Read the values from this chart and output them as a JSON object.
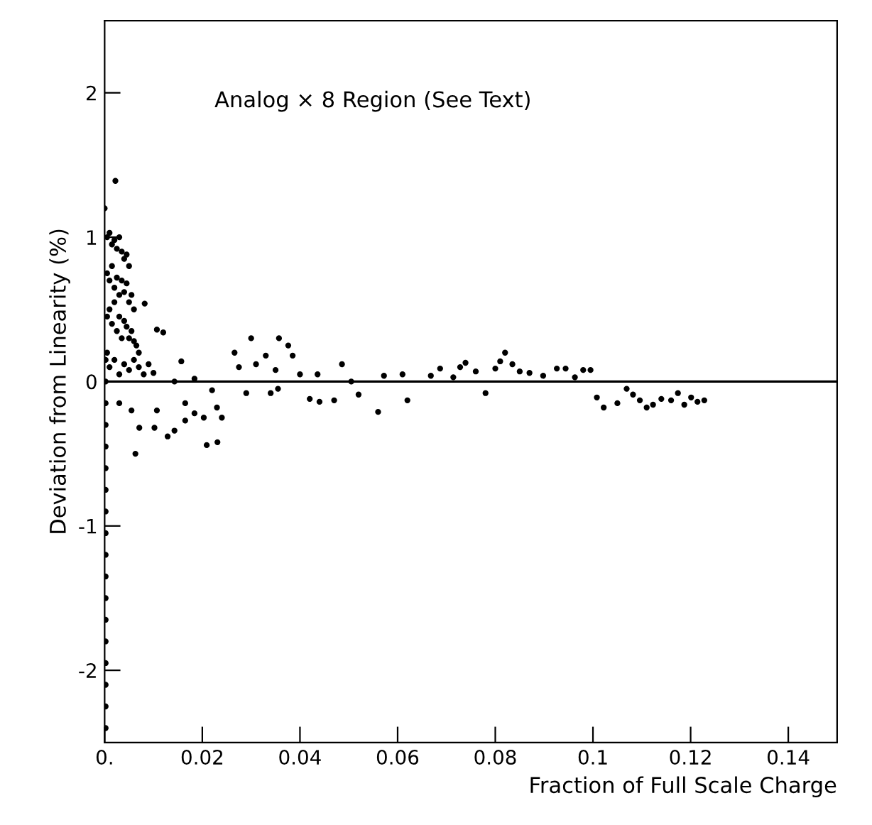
{
  "chart_data": {
    "type": "scatter",
    "xlabel": "Fraction of Full Scale Charge",
    "ylabel": "Deviation from Linearity (%)",
    "annotations": [
      "Analog × 8 Region (See Text)"
    ],
    "xlim": [
      0,
      0.15
    ],
    "ylim": [
      -2.5,
      2.5
    ],
    "xticks": [
      {
        "value": 0,
        "label": "0."
      },
      0.02,
      0.04,
      0.06,
      0.08,
      0.1,
      0.12,
      0.14
    ],
    "yticks": [
      -2,
      -1,
      0,
      1,
      2
    ],
    "grid": false,
    "legend": false,
    "marker": "circle",
    "ref_lines": [
      {
        "axis": "y",
        "value": 0,
        "color": "#000000"
      }
    ],
    "series": [
      {
        "color": "#000000",
        "x": [
          0.0002,
          0.0002,
          0.0002,
          0.0002,
          0.0002,
          0.0002,
          0.0002,
          0.0002,
          0.0002,
          0.0002,
          0.0002,
          0.0002,
          0.0002,
          0.0002,
          0.0002,
          0.0002,
          0.0002,
          0.0002,
          0.0022,
          0.0,
          0.0005,
          0.001,
          0.0015,
          0.002,
          0.0025,
          0.003,
          0.0035,
          0.004,
          0.0045,
          0.005,
          0.0005,
          0.001,
          0.0015,
          0.002,
          0.0025,
          0.003,
          0.0035,
          0.004,
          0.0045,
          0.005,
          0.0055,
          0.006,
          0.0005,
          0.001,
          0.0015,
          0.002,
          0.0025,
          0.003,
          0.0035,
          0.004,
          0.0045,
          0.005,
          0.0055,
          0.006,
          0.0065,
          0.007,
          0.0005,
          0.001,
          0.002,
          0.003,
          0.004,
          0.005,
          0.006,
          0.007,
          0.008,
          0.009,
          0.01,
          0.0082,
          0.0107,
          0.012,
          0.0157,
          0.0063,
          0.0071,
          0.0102,
          0.0129,
          0.0143,
          0.0209,
          0.0231,
          0.003,
          0.0055,
          0.0107,
          0.0165,
          0.0184,
          0.0203,
          0.023,
          0.024,
          0.0165,
          0.0266,
          0.03,
          0.0357,
          0.0376,
          0.0385,
          0.0275,
          0.031,
          0.033,
          0.035,
          0.029,
          0.034,
          0.0355,
          0.042,
          0.044,
          0.047,
          0.04,
          0.0436,
          0.0486,
          0.0505,
          0.0184,
          0.022,
          0.0143,
          0.052,
          0.056,
          0.062,
          0.0687,
          0.0739,
          0.0728,
          0.076,
          0.078,
          0.08,
          0.081,
          0.082,
          0.0835,
          0.085,
          0.087,
          0.0898,
          0.0926,
          0.0944,
          0.0963,
          0.098,
          0.0995,
          0.0572,
          0.061,
          0.0668,
          0.0714,
          0.1008,
          0.1022,
          0.105,
          0.1069,
          0.1082,
          0.1096,
          0.111,
          0.1123,
          0.114,
          0.116,
          0.1174,
          0.1187,
          0.1201,
          0.1214,
          0.1228
        ],
        "values": [
          -2.4,
          -2.25,
          -2.1,
          -1.95,
          -1.8,
          -1.65,
          -1.5,
          -1.35,
          -1.2,
          -1.05,
          -0.9,
          -0.75,
          -0.6,
          -0.45,
          -0.3,
          -0.15,
          0.0,
          0.15,
          1.39,
          1.2,
          1.0,
          1.03,
          0.95,
          0.98,
          0.92,
          1.0,
          0.9,
          0.85,
          0.88,
          0.8,
          0.75,
          0.7,
          0.8,
          0.65,
          0.72,
          0.6,
          0.7,
          0.62,
          0.68,
          0.55,
          0.6,
          0.5,
          0.45,
          0.5,
          0.4,
          0.55,
          0.35,
          0.45,
          0.3,
          0.42,
          0.38,
          0.3,
          0.35,
          0.28,
          0.25,
          0.2,
          0.2,
          0.1,
          0.15,
          0.05,
          0.12,
          0.08,
          0.15,
          0.1,
          0.05,
          0.12,
          0.06,
          0.54,
          0.36,
          0.34,
          0.14,
          -0.5,
          -0.32,
          -0.32,
          -0.38,
          -0.34,
          -0.44,
          -0.42,
          -0.15,
          -0.2,
          -0.2,
          -0.15,
          -0.22,
          -0.25,
          -0.18,
          -0.25,
          -0.27,
          0.2,
          0.3,
          0.3,
          0.25,
          0.18,
          0.1,
          0.12,
          0.18,
          0.08,
          -0.08,
          -0.08,
          -0.05,
          -0.12,
          -0.14,
          -0.13,
          0.05,
          0.05,
          0.12,
          0.0,
          0.02,
          -0.06,
          0.0,
          -0.09,
          -0.21,
          -0.13,
          0.09,
          0.13,
          0.1,
          0.07,
          -0.08,
          0.09,
          0.14,
          0.2,
          0.12,
          0.07,
          0.06,
          0.04,
          0.09,
          0.09,
          0.03,
          0.08,
          0.08,
          0.04,
          0.05,
          0.04,
          0.03,
          -0.11,
          -0.18,
          -0.15,
          -0.05,
          -0.09,
          -0.13,
          -0.18,
          -0.16,
          -0.12,
          -0.13,
          -0.08,
          -0.16,
          -0.11,
          -0.14,
          -0.13
        ]
      }
    ]
  }
}
